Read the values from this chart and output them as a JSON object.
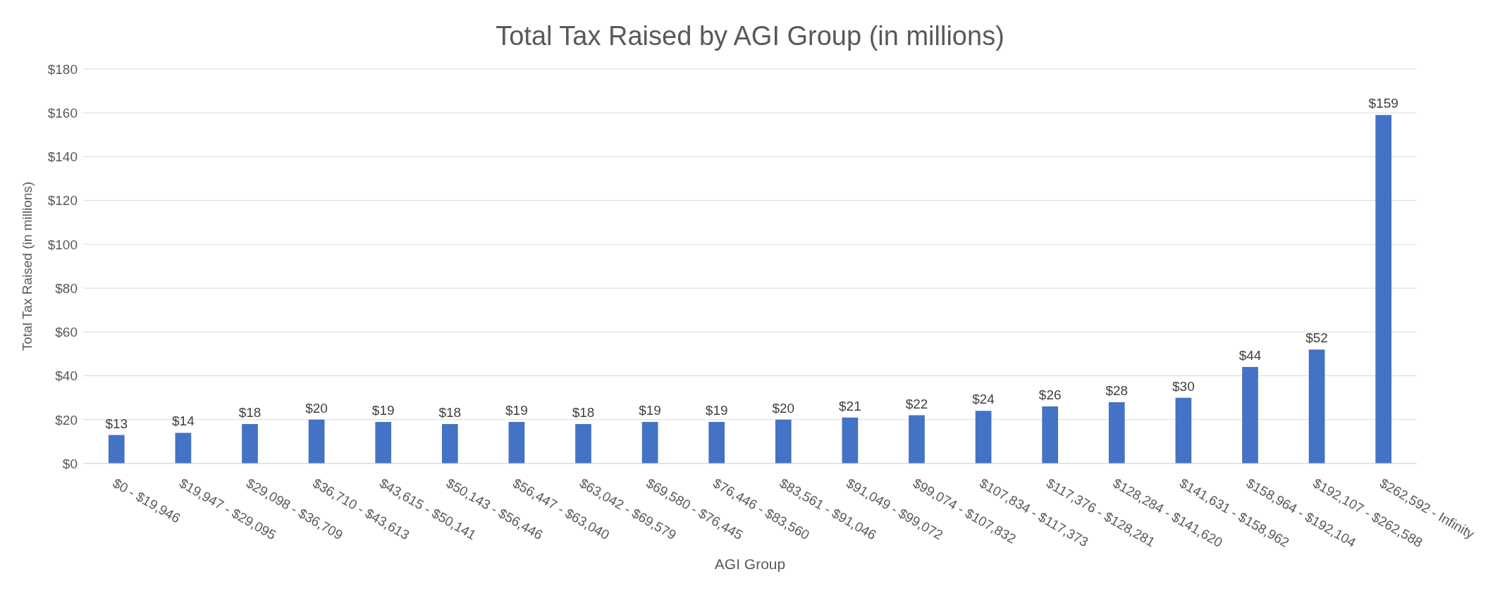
{
  "chart_data": {
    "type": "bar",
    "title": "Total Tax Raised by AGI Group (in millions)",
    "xlabel": "AGI Group",
    "ylabel": "Total Tax Raised (in millions)",
    "categories": [
      "$0 - $19,946",
      "$19,947 - $29,095",
      "$29,098 - $36,709",
      "$36,710 - $43,613",
      "$43,615 - $50,141",
      "$50,143 - $56,446",
      "$56,447 - $63,040",
      "$63,042 - $69,579",
      "$69,580 - $76,445",
      "$76,446 - $83,560",
      "$83,561 - $91,046",
      "$91,049 - $99,072",
      "$99,074 - $107,832",
      "$107,834 - $117,373",
      "$117,376 - $128,281",
      "$128,284 - $141,620",
      "$141,631 - $158,962",
      "$158,964 - $192,104",
      "$192,107 - $262,588",
      "$262,592 - Infinity"
    ],
    "values": [
      13,
      14,
      18,
      20,
      19,
      18,
      19,
      18,
      19,
      19,
      20,
      21,
      22,
      24,
      26,
      28,
      30,
      44,
      52,
      159
    ],
    "value_labels": [
      "$13",
      "$14",
      "$18",
      "$20",
      "$19",
      "$18",
      "$19",
      "$18",
      "$19",
      "$19",
      "$20",
      "$21",
      "$22",
      "$24",
      "$26",
      "$28",
      "$30",
      "$44",
      "$52",
      "$159"
    ],
    "color": "#4472c4",
    "ylim": [
      0,
      180
    ],
    "yticks": [
      {
        "value": 0,
        "label": "$0"
      },
      {
        "value": 20,
        "label": "$20"
      },
      {
        "value": 40,
        "label": "$40"
      },
      {
        "value": 60,
        "label": "$60"
      },
      {
        "value": 80,
        "label": "$80"
      },
      {
        "value": 100,
        "label": "$100"
      },
      {
        "value": 120,
        "label": "$120"
      },
      {
        "value": 140,
        "label": "$140"
      },
      {
        "value": 160,
        "label": "$160"
      },
      {
        "value": 180,
        "label": "$180"
      }
    ],
    "grid": "y",
    "legend": false
  }
}
